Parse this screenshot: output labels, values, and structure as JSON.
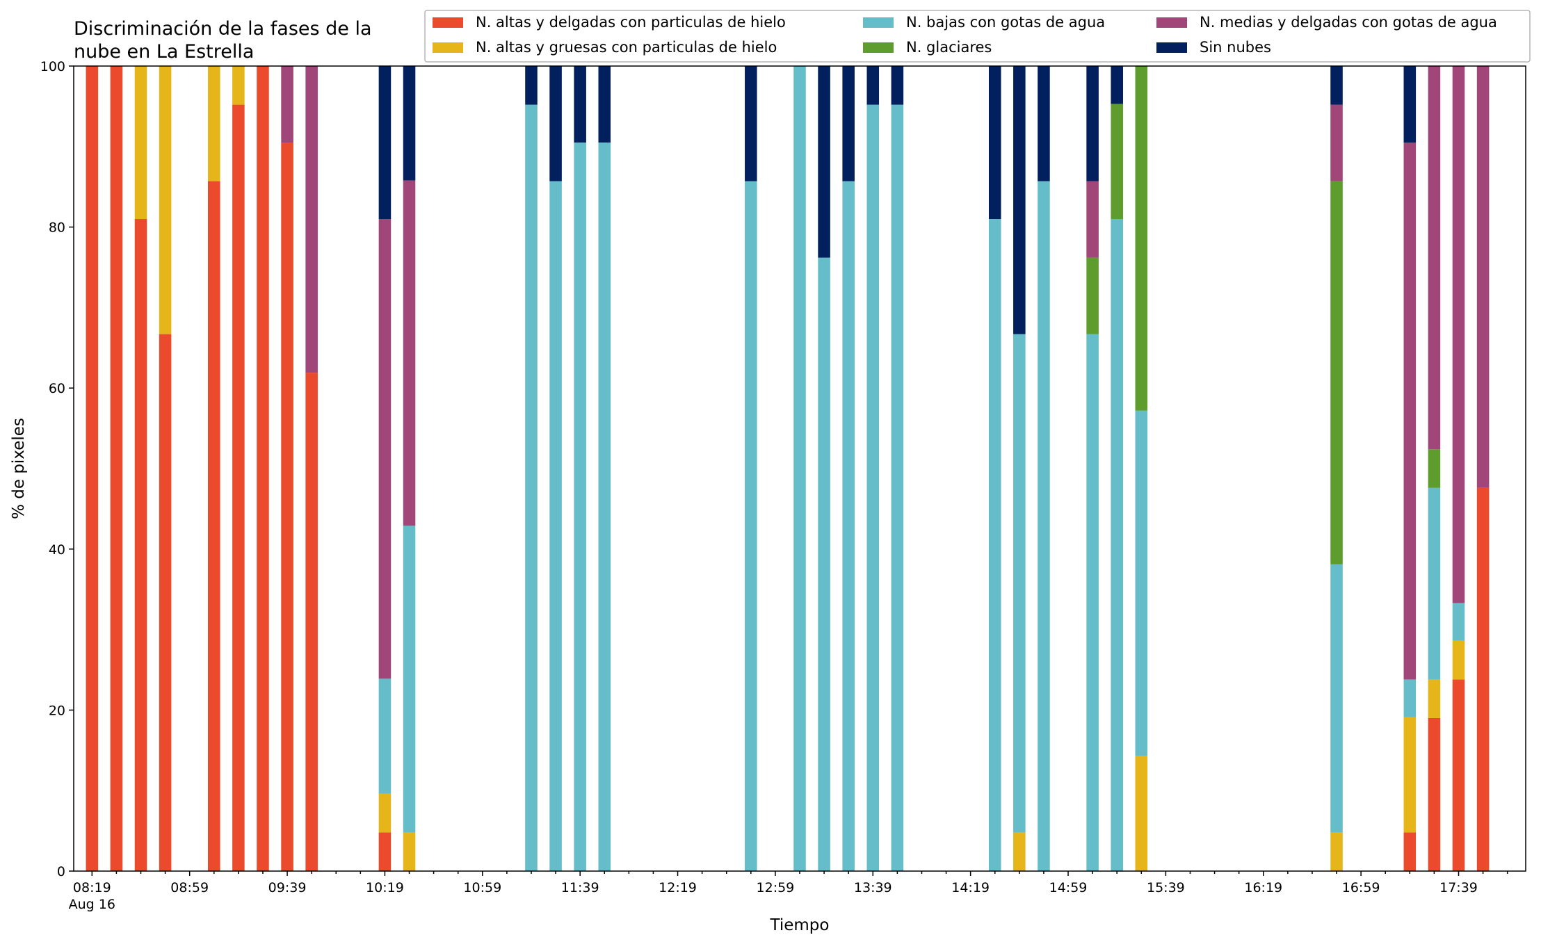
{
  "chart_data": {
    "type": "bar",
    "stacked": true,
    "title_lines": [
      "Discriminación de la fases de la",
      "nube en La Estrella"
    ],
    "xlabel": "Tiempo",
    "ylabel": "% de pixeles",
    "ylim": [
      0,
      100
    ],
    "yticks": [
      0,
      20,
      40,
      60,
      80,
      100
    ],
    "x_start": "08:19",
    "x_step_minutes": 10,
    "x_end": "17:59",
    "x_ticks": [
      {
        "time": "08:19",
        "label": "08:19",
        "sublabel": "Aug 16"
      },
      {
        "time": "08:59",
        "label": "08:59"
      },
      {
        "time": "09:39",
        "label": "09:39"
      },
      {
        "time": "10:19",
        "label": "10:19"
      },
      {
        "time": "10:59",
        "label": "10:59"
      },
      {
        "time": "11:39",
        "label": "11:39"
      },
      {
        "time": "12:19",
        "label": "12:19"
      },
      {
        "time": "12:59",
        "label": "12:59"
      },
      {
        "time": "13:39",
        "label": "13:39"
      },
      {
        "time": "14:19",
        "label": "14:19"
      },
      {
        "time": "14:59",
        "label": "14:59"
      },
      {
        "time": "15:39",
        "label": "15:39"
      },
      {
        "time": "16:19",
        "label": "16:19"
      },
      {
        "time": "16:59",
        "label": "16:59"
      },
      {
        "time": "17:39",
        "label": "17:39"
      }
    ],
    "legend_position": "top-right",
    "series": [
      {
        "name": "N. altas y delgadas con particulas de hielo",
        "color": "#EC4A2D"
      },
      {
        "name": "N. altas y gruesas con particulas de hielo",
        "color": "#E6B519"
      },
      {
        "name": "N. bajas con gotas de agua",
        "color": "#64BDC8"
      },
      {
        "name": "N. glaciares",
        "color": "#5D9C2D"
      },
      {
        "name": "N. medias y delgadas con gotas de agua",
        "color": "#A04678"
      },
      {
        "name": "Sin nubes",
        "color": "#021F5E"
      }
    ],
    "bars": [
      {
        "time": "08:19",
        "values": [
          100,
          0,
          0,
          0,
          0,
          0
        ]
      },
      {
        "time": "08:29",
        "values": [
          100,
          0,
          0,
          0,
          0,
          0
        ]
      },
      {
        "time": "08:39",
        "values": [
          81,
          19,
          0,
          0,
          0,
          0
        ]
      },
      {
        "time": "08:49",
        "values": [
          66.7,
          33.3,
          0,
          0,
          0,
          0
        ]
      },
      {
        "time": "09:09",
        "values": [
          85.7,
          14.3,
          0,
          0,
          0,
          0
        ]
      },
      {
        "time": "09:19",
        "values": [
          95.2,
          4.8,
          0,
          0,
          0,
          0
        ]
      },
      {
        "time": "09:29",
        "values": [
          100,
          0,
          0,
          0,
          0,
          0
        ]
      },
      {
        "time": "09:39",
        "values": [
          90.5,
          0,
          0,
          0,
          9.5,
          0
        ]
      },
      {
        "time": "09:49",
        "values": [
          61.9,
          0,
          0,
          0,
          38.1,
          0
        ]
      },
      {
        "time": "10:19",
        "values": [
          4.8,
          4.8,
          14.3,
          0,
          57.1,
          19
        ]
      },
      {
        "time": "10:29",
        "values": [
          0,
          4.8,
          38.1,
          0,
          42.9,
          14.2
        ]
      },
      {
        "time": "11:19",
        "values": [
          0,
          0,
          95.2,
          0,
          0,
          4.8
        ]
      },
      {
        "time": "11:29",
        "values": [
          0,
          0,
          85.7,
          0,
          0,
          14.3
        ]
      },
      {
        "time": "11:39",
        "values": [
          0,
          0,
          90.5,
          0,
          0,
          9.5
        ]
      },
      {
        "time": "11:49",
        "values": [
          0,
          0,
          90.5,
          0,
          0,
          9.5
        ]
      },
      {
        "time": "12:49",
        "values": [
          0,
          0,
          85.7,
          0,
          0,
          14.3
        ]
      },
      {
        "time": "13:09",
        "values": [
          0,
          0,
          100,
          0,
          0,
          0
        ]
      },
      {
        "time": "13:19",
        "values": [
          0,
          0,
          76.2,
          0,
          0,
          23.8
        ]
      },
      {
        "time": "13:29",
        "values": [
          0,
          0,
          85.7,
          0,
          0,
          14.3
        ]
      },
      {
        "time": "13:39",
        "values": [
          0,
          0,
          95.2,
          0,
          0,
          4.8
        ]
      },
      {
        "time": "13:49",
        "values": [
          0,
          0,
          95.2,
          0,
          0,
          4.8
        ]
      },
      {
        "time": "14:29",
        "values": [
          0,
          0,
          81,
          0,
          0,
          19
        ]
      },
      {
        "time": "14:39",
        "values": [
          0,
          4.8,
          61.9,
          0,
          0,
          33.3
        ]
      },
      {
        "time": "14:49",
        "values": [
          0,
          0,
          85.7,
          0,
          0,
          14.3
        ]
      },
      {
        "time": "15:09",
        "values": [
          0,
          0,
          66.7,
          9.5,
          9.5,
          14.3
        ]
      },
      {
        "time": "15:19",
        "values": [
          0,
          0,
          81,
          14.3,
          0,
          4.7
        ]
      },
      {
        "time": "15:29",
        "values": [
          0,
          14.3,
          42.9,
          42.8,
          0,
          0
        ]
      },
      {
        "time": "16:49",
        "values": [
          0,
          4.8,
          33.3,
          47.6,
          9.5,
          4.8
        ]
      },
      {
        "time": "17:19",
        "values": [
          4.8,
          14.3,
          4.7,
          0,
          66.7,
          9.5
        ]
      },
      {
        "time": "17:29",
        "values": [
          19,
          4.8,
          23.8,
          4.8,
          47.6,
          0
        ]
      },
      {
        "time": "17:39",
        "values": [
          23.8,
          4.8,
          4.7,
          0,
          66.7,
          0
        ]
      },
      {
        "time": "17:49",
        "values": [
          47.6,
          0,
          0,
          0,
          52.4,
          0
        ]
      }
    ]
  }
}
